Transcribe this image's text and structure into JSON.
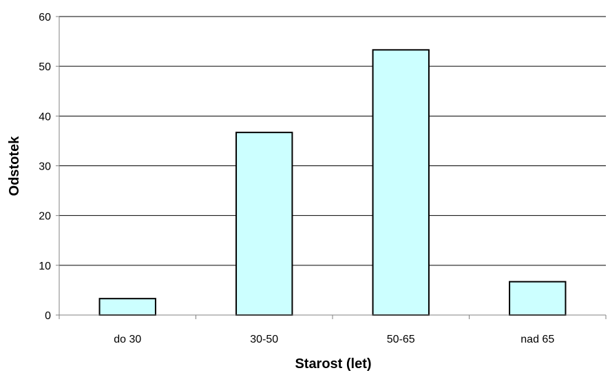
{
  "chart_data": {
    "type": "bar",
    "categories": [
      "do 30",
      "30-50",
      "50-65",
      "nad 65"
    ],
    "values": [
      3.3,
      36.7,
      53.3,
      6.7
    ],
    "xlabel": "Starost (let)",
    "ylabel": "Odstotek",
    "ylim": [
      0,
      60
    ],
    "yticks": [
      0,
      10,
      20,
      30,
      40,
      50,
      60
    ],
    "grid": true,
    "legend": "none",
    "colors": {
      "bar_fill": "#CCFFFF",
      "bar_stroke": "#000000",
      "grid": "#000000",
      "axis": "#808080"
    }
  }
}
